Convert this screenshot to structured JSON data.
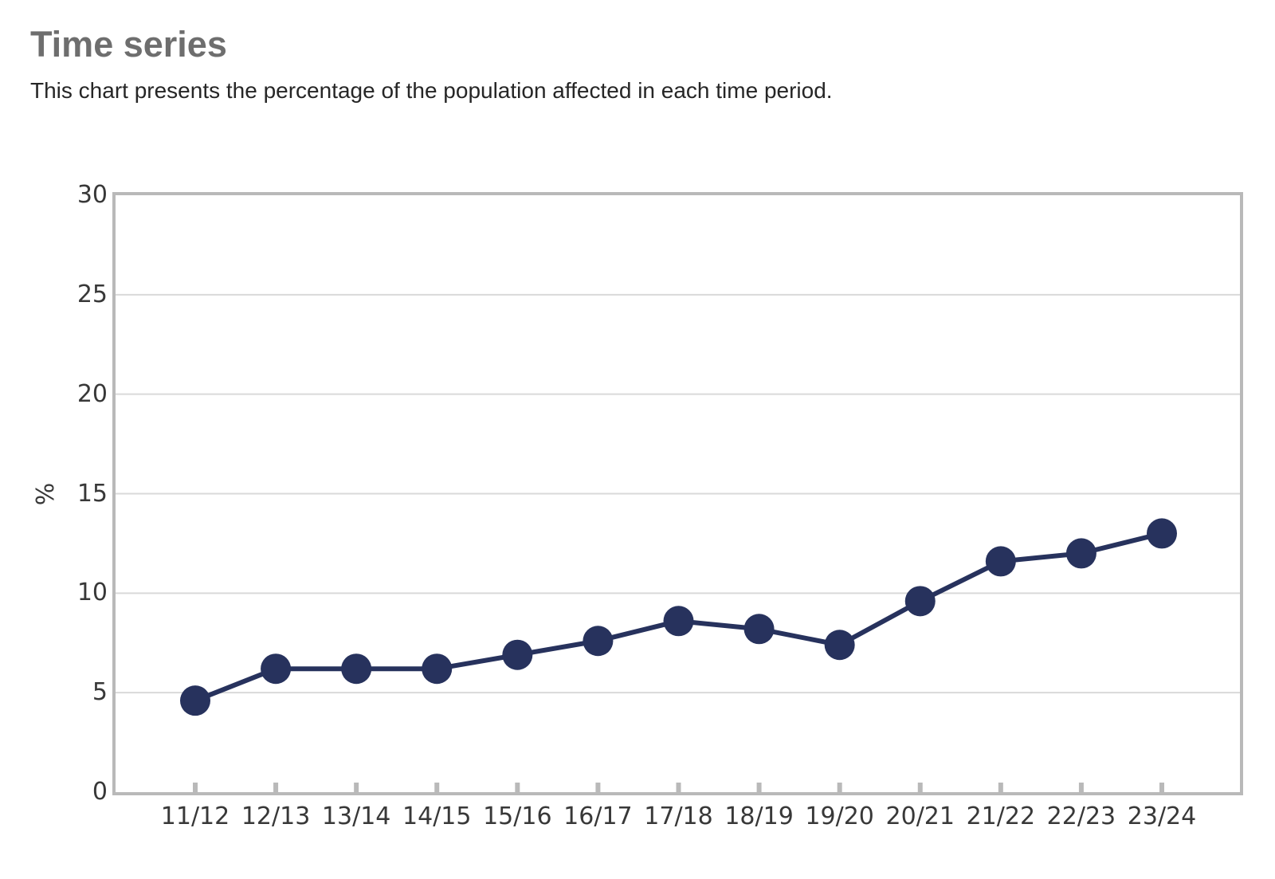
{
  "header": {
    "title": "Time series",
    "subtitle": "This chart presents the percentage of the population affected in each time period."
  },
  "chart_data": {
    "type": "line",
    "title": "Time series",
    "subtitle": "This chart presents the percentage of the population affected in each time period.",
    "categories": [
      "11/12",
      "12/13",
      "13/14",
      "14/15",
      "15/16",
      "16/17",
      "17/18",
      "18/19",
      "19/20",
      "20/21",
      "21/22",
      "22/23",
      "23/24"
    ],
    "series": [
      {
        "name": "Percentage of the population affected",
        "values": [
          4.6,
          6.2,
          6.2,
          6.2,
          6.9,
          7.6,
          8.6,
          8.2,
          7.4,
          9.6,
          11.6,
          12.0,
          13.0
        ]
      }
    ],
    "xlabel": "",
    "ylabel": "%",
    "ylim": [
      0,
      30
    ],
    "yticks": [
      0,
      5,
      10,
      15,
      20,
      25,
      30
    ],
    "grid": "horizontal",
    "legend": "none",
    "marker": "filled-circle"
  },
  "colors": {
    "background": "#ffffff",
    "title": "#6e6e6e",
    "subtitle": "#262626",
    "axis_labels": "#383838",
    "plot_border": "#b9b9b9",
    "gridline": "#d9d9d9",
    "tick": "#b9b9b9",
    "series": "#27325d"
  }
}
